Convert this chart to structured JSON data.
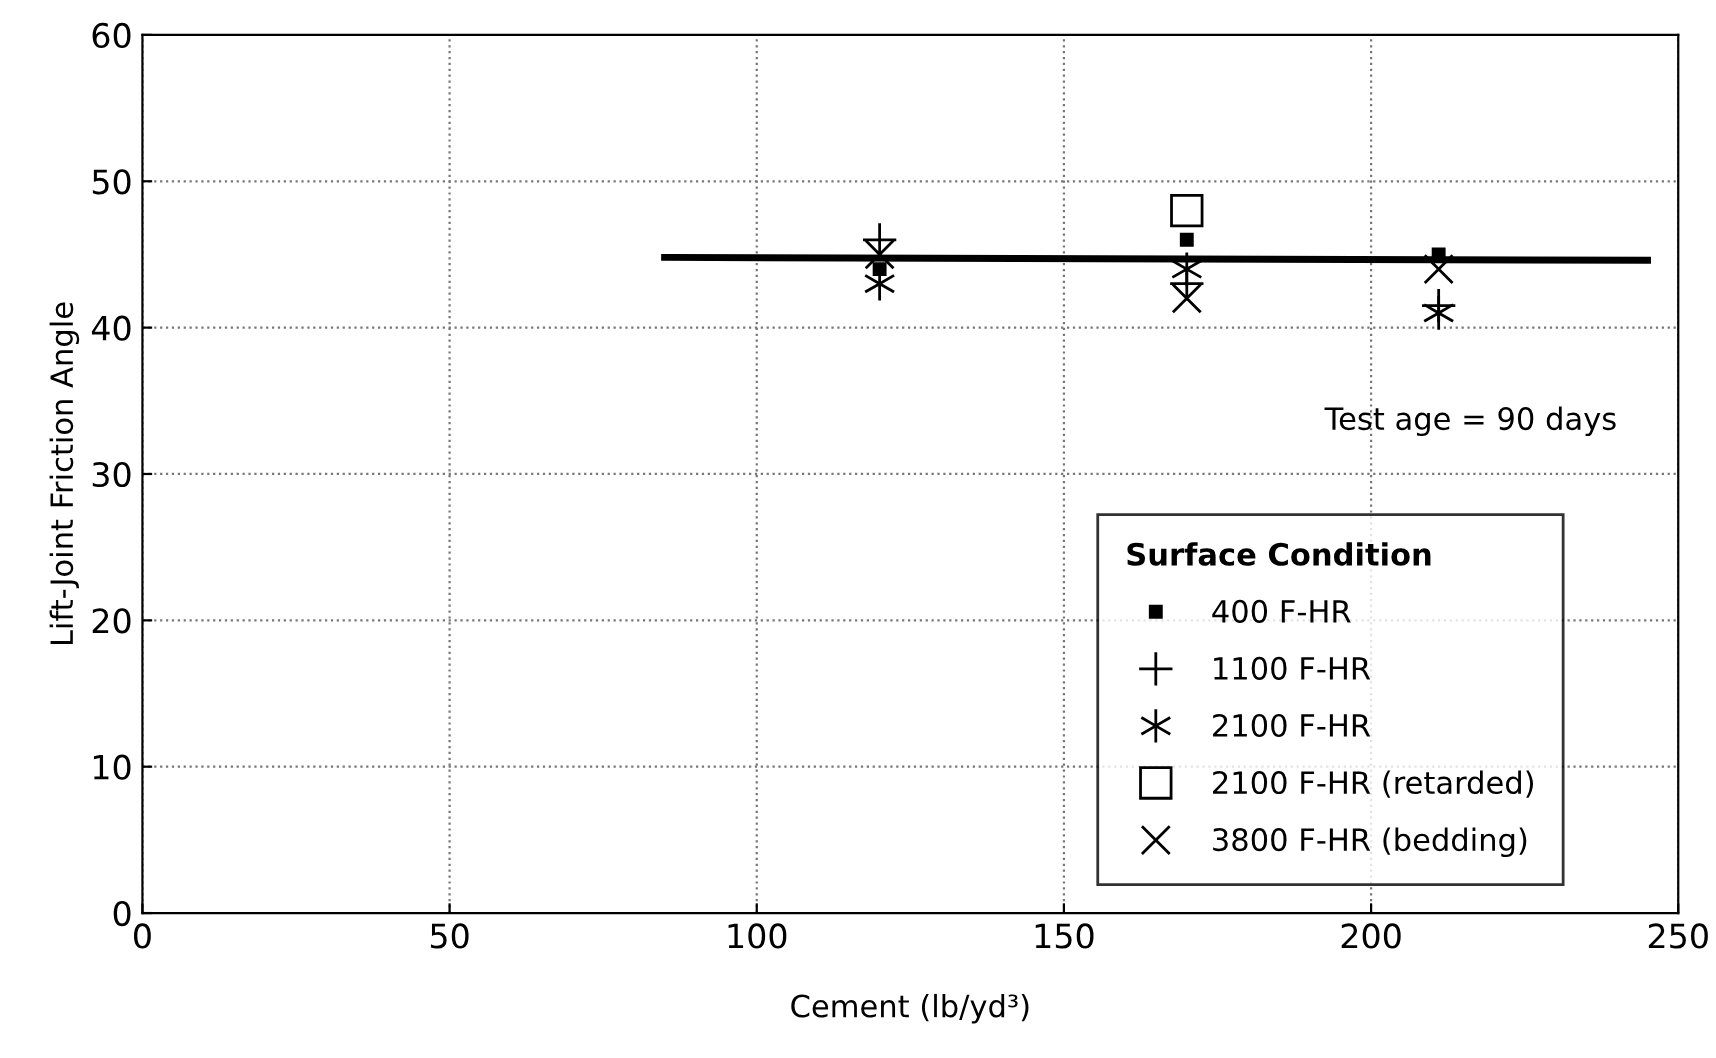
{
  "chart_data": {
    "type": "scatter",
    "xlabel": "Cement (lb/yd³)",
    "ylabel": "Lift-Joint Friction Angle",
    "xlim": [
      0,
      250
    ],
    "ylim": [
      0,
      60
    ],
    "xticks": [
      0,
      50,
      100,
      150,
      200,
      250
    ],
    "yticks": [
      0,
      10,
      20,
      30,
      40,
      50,
      60
    ],
    "grid": true,
    "legend": "bottom right",
    "legend_title": "Surface Condition",
    "annotations": [
      "Test age = 90 days"
    ],
    "series": [
      {
        "name": "400 F-HR",
        "color": "#000000",
        "x": [
          120,
          170,
          211
        ],
        "values": [
          44,
          46,
          45
        ]
      },
      {
        "name": "1100 F-HR",
        "color": "#000000",
        "x": [
          120,
          170,
          211
        ],
        "values": [
          46,
          43,
          41.5
        ]
      },
      {
        "name": "2100 F-HR",
        "color": "#000000",
        "x": [
          120,
          170,
          211
        ],
        "values": [
          43,
          44,
          41
        ]
      },
      {
        "name": "2100 F-HR (retarded)",
        "color": "#000000",
        "x": [
          170
        ],
        "values": [
          48
        ]
      },
      {
        "name": "3800 F-HR (bedding)",
        "color": "#000000",
        "x": [
          120,
          170,
          211
        ],
        "values": [
          45,
          42,
          44
        ]
      },
      {
        "type": "line",
        "color": "#000000",
        "x": [
          85,
          245
        ],
        "values": [
          44.8,
          44.6
        ]
      }
    ]
  }
}
